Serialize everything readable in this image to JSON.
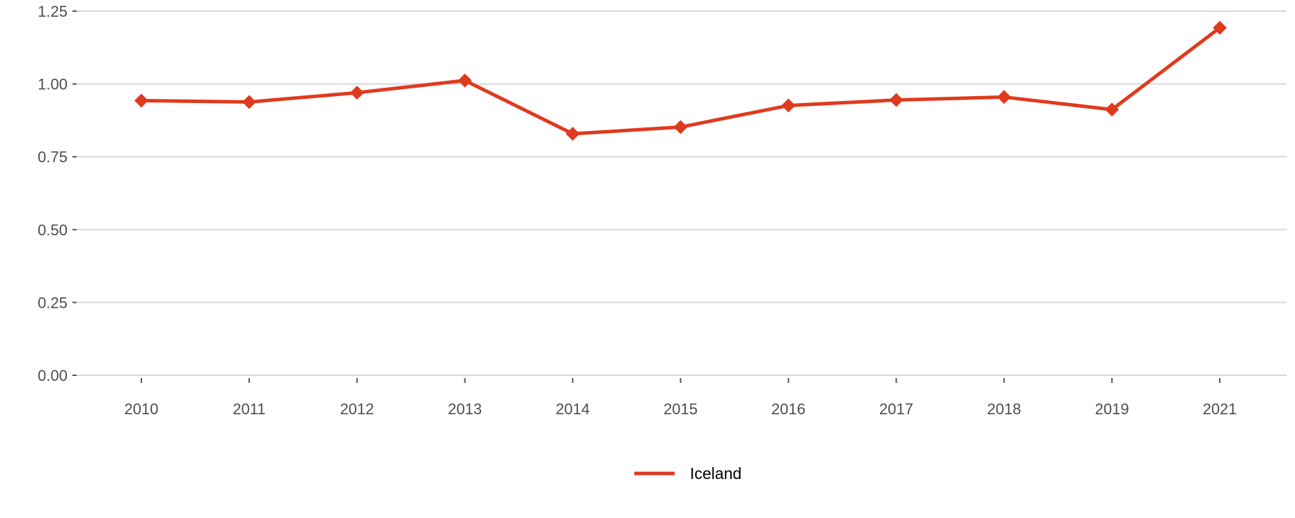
{
  "chart_data": {
    "type": "line",
    "title": "",
    "xlabel": "",
    "ylabel": "",
    "categories": [
      "2010",
      "2011",
      "2012",
      "2013",
      "2014",
      "2015",
      "2016",
      "2017",
      "2018",
      "2019",
      "2021"
    ],
    "series": [
      {
        "name": "Iceland",
        "color": "#e03a1e",
        "marker": "diamond",
        "values": [
          0.943,
          0.938,
          0.97,
          1.012,
          0.829,
          0.852,
          0.926,
          0.945,
          0.955,
          0.912,
          1.193
        ]
      }
    ],
    "yticks": [
      "0.00",
      "0.25",
      "0.50",
      "0.75",
      "1.00",
      "1.25"
    ],
    "ylim": [
      0,
      1.25
    ],
    "grid": "horizontal",
    "legend_position": "bottom"
  }
}
